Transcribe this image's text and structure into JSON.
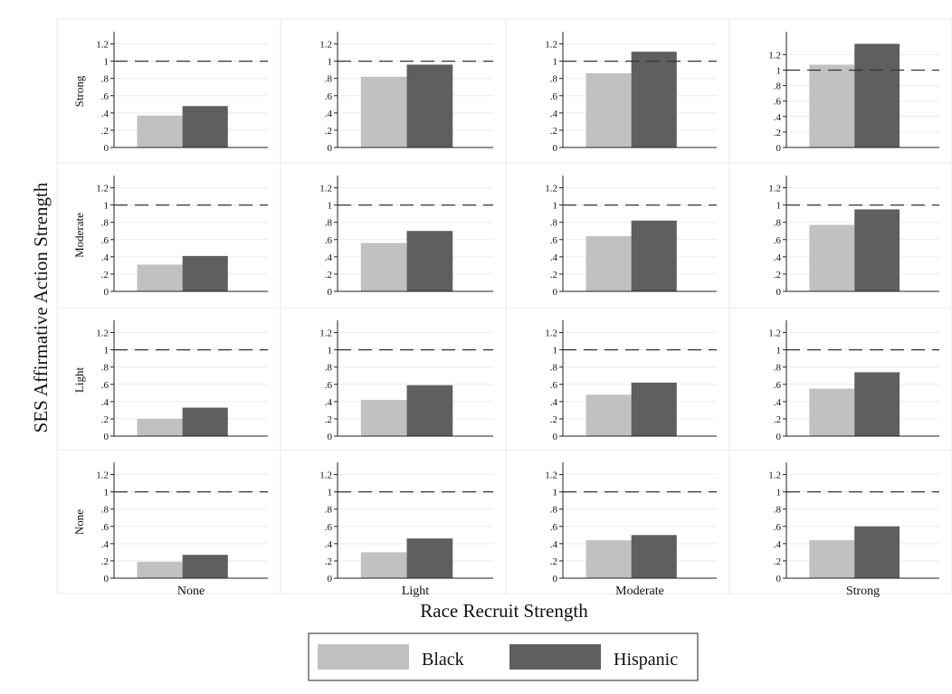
{
  "chart_data": {
    "type": "bar",
    "ylabel": "SES Affirmative Action Strength",
    "xlabel": "Race Recruit Strength",
    "columns": [
      "None",
      "Light",
      "Moderate",
      "Strong"
    ],
    "rows": [
      "Strong",
      "Moderate",
      "Light",
      "None"
    ],
    "series_names": [
      "Black",
      "Hispanic"
    ],
    "colors": {
      "Black": "#c1c1c1",
      "Hispanic": "#5f5f5f",
      "reference_line": "#333333"
    },
    "reference_line": 1,
    "legend_position": "bottom-center",
    "grid": true,
    "panels": [
      {
        "row": "Strong",
        "col": "None",
        "ylim": [
          0,
          1.3
        ],
        "yticks": [
          "0",
          ".2",
          ".4",
          ".6",
          ".8",
          "1",
          "1.2"
        ],
        "values": {
          "Black": 0.37,
          "Hispanic": 0.48
        }
      },
      {
        "row": "Strong",
        "col": "Light",
        "ylim": [
          0,
          1.3
        ],
        "yticks": [
          "0",
          ".2",
          ".4",
          ".6",
          ".8",
          "1",
          "1.2"
        ],
        "values": {
          "Black": 0.82,
          "Hispanic": 0.96
        }
      },
      {
        "row": "Strong",
        "col": "Moderate",
        "ylim": [
          0,
          1.3
        ],
        "yticks": [
          "0",
          ".2",
          ".4",
          ".6",
          ".8",
          "1",
          "1.2"
        ],
        "values": {
          "Black": 0.86,
          "Hispanic": 1.11
        }
      },
      {
        "row": "Strong",
        "col": "Strong",
        "ylim": [
          0,
          1.45
        ],
        "yticks": [
          "0",
          ".2",
          ".4",
          ".6",
          ".8",
          "1",
          "1.2"
        ],
        "values": {
          "Black": 1.07,
          "Hispanic": 1.34
        }
      },
      {
        "row": "Moderate",
        "col": "None",
        "ylim": [
          0,
          1.3
        ],
        "yticks": [
          "0",
          ".2",
          ".4",
          ".6",
          ".8",
          "1",
          "1.2"
        ],
        "values": {
          "Black": 0.31,
          "Hispanic": 0.41
        }
      },
      {
        "row": "Moderate",
        "col": "Light",
        "ylim": [
          0,
          1.3
        ],
        "yticks": [
          "0",
          ".2",
          ".4",
          ".6",
          ".8",
          "1",
          "1.2"
        ],
        "values": {
          "Black": 0.56,
          "Hispanic": 0.7
        }
      },
      {
        "row": "Moderate",
        "col": "Moderate",
        "ylim": [
          0,
          1.3
        ],
        "yticks": [
          "0",
          ".2",
          ".4",
          ".6",
          ".8",
          "1",
          "1.2"
        ],
        "values": {
          "Black": 0.64,
          "Hispanic": 0.82
        }
      },
      {
        "row": "Moderate",
        "col": "Strong",
        "ylim": [
          0,
          1.3
        ],
        "yticks": [
          "0",
          ".2",
          ".4",
          ".6",
          ".8",
          "1",
          "1.2"
        ],
        "values": {
          "Black": 0.77,
          "Hispanic": 0.95
        }
      },
      {
        "row": "Light",
        "col": "None",
        "ylim": [
          0,
          1.3
        ],
        "yticks": [
          "0",
          ".2",
          ".4",
          ".6",
          ".8",
          "1",
          "1.2"
        ],
        "values": {
          "Black": 0.2,
          "Hispanic": 0.33
        }
      },
      {
        "row": "Light",
        "col": "Light",
        "ylim": [
          0,
          1.3
        ],
        "yticks": [
          "0",
          ".2",
          ".4",
          ".6",
          ".8",
          "1",
          "1.2"
        ],
        "values": {
          "Black": 0.42,
          "Hispanic": 0.59
        }
      },
      {
        "row": "Light",
        "col": "Moderate",
        "ylim": [
          0,
          1.3
        ],
        "yticks": [
          "0",
          ".2",
          ".4",
          ".6",
          ".8",
          "1",
          "1.2"
        ],
        "values": {
          "Black": 0.48,
          "Hispanic": 0.62
        }
      },
      {
        "row": "Light",
        "col": "Strong",
        "ylim": [
          0,
          1.3
        ],
        "yticks": [
          "0",
          ".2",
          ".4",
          ".6",
          ".8",
          "1",
          "1.2"
        ],
        "values": {
          "Black": 0.55,
          "Hispanic": 0.74
        }
      },
      {
        "row": "None",
        "col": "None",
        "ylim": [
          0,
          1.3
        ],
        "yticks": [
          "0",
          ".2",
          ".4",
          ".6",
          ".8",
          "1",
          "1.2"
        ],
        "values": {
          "Black": 0.19,
          "Hispanic": 0.27
        }
      },
      {
        "row": "None",
        "col": "Light",
        "ylim": [
          0,
          1.3
        ],
        "yticks": [
          "0",
          ".2",
          ".4",
          ".6",
          ".8",
          "1",
          "1.2"
        ],
        "values": {
          "Black": 0.3,
          "Hispanic": 0.46
        }
      },
      {
        "row": "None",
        "col": "Moderate",
        "ylim": [
          0,
          1.3
        ],
        "yticks": [
          "0",
          ".2",
          ".4",
          ".6",
          ".8",
          "1",
          "1.2"
        ],
        "values": {
          "Black": 0.44,
          "Hispanic": 0.5
        }
      },
      {
        "row": "None",
        "col": "Strong",
        "ylim": [
          0,
          1.3
        ],
        "yticks": [
          "0",
          ".2",
          ".4",
          ".6",
          ".8",
          "1",
          "1.2"
        ],
        "values": {
          "Black": 0.44,
          "Hispanic": 0.6
        }
      }
    ]
  }
}
